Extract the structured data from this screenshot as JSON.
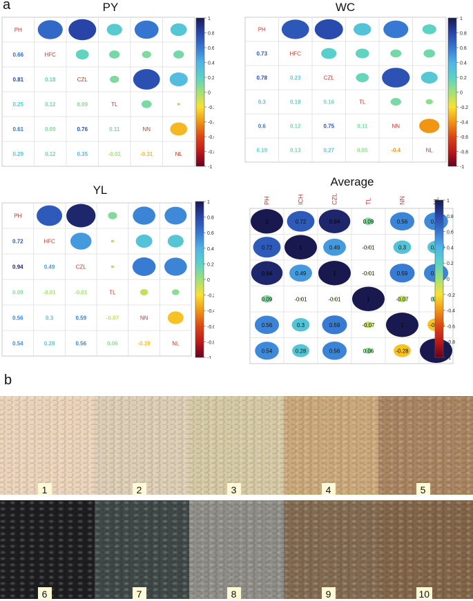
{
  "panels": {
    "a": "a",
    "b": "b"
  },
  "colorbar_ticks": [
    "1",
    "0.8",
    "0.6",
    "0.4",
    "0.2",
    "0",
    "-0.2",
    "-0.4",
    "-0.6",
    "-0.8",
    "-1"
  ],
  "chart_data": [
    {
      "type": "heatmap",
      "title": "PY",
      "labels": [
        "PH",
        "HFC",
        "CZL",
        "TL",
        "NN",
        "NL"
      ],
      "lower": [
        [
          1,
          0
        ],
        [
          2,
          0
        ],
        [
          2,
          1
        ],
        [
          3,
          0
        ],
        [
          3,
          1
        ],
        [
          3,
          2
        ],
        [
          4,
          0
        ],
        [
          4,
          1
        ],
        [
          4,
          2
        ],
        [
          4,
          3
        ],
        [
          5,
          0
        ],
        [
          5,
          1
        ],
        [
          5,
          2
        ],
        [
          5,
          3
        ],
        [
          5,
          4
        ]
      ],
      "lower_values": [
        0.66,
        0.81,
        0.18,
        0.25,
        0.12,
        0.09,
        0.61,
        0.09,
        0.76,
        0.11,
        0.29,
        0.12,
        0.35,
        -0.01,
        -0.31
      ],
      "lower_text": [
        "0.66",
        "0.81",
        "0.18",
        "0.25",
        "0.12",
        "0.09",
        "0.61",
        "0.09",
        "0.76",
        "0.11",
        "0.29",
        "0.12",
        "0.35",
        "-0.01",
        "-0.31"
      ],
      "show_upper_text": false,
      "column_labels": false,
      "colorbar_range": [
        -1,
        1
      ]
    },
    {
      "type": "heatmap",
      "title": "WC",
      "labels": [
        "PH",
        "HFC",
        "CZL",
        "TL",
        "NN",
        "NL"
      ],
      "lower": [
        [
          1,
          0
        ],
        [
          2,
          0
        ],
        [
          2,
          1
        ],
        [
          3,
          0
        ],
        [
          3,
          1
        ],
        [
          3,
          2
        ],
        [
          4,
          0
        ],
        [
          4,
          1
        ],
        [
          4,
          2
        ],
        [
          4,
          3
        ],
        [
          5,
          0
        ],
        [
          5,
          1
        ],
        [
          5,
          2
        ],
        [
          5,
          3
        ],
        [
          5,
          4
        ]
      ],
      "lower_values": [
        0.73,
        0.78,
        0.23,
        0.3,
        0.18,
        0.16,
        0.6,
        0.12,
        0.75,
        0.11,
        0.19,
        0.13,
        0.27,
        0.05,
        -0.4
      ],
      "lower_text": [
        "0.73",
        "0.78",
        "0.23",
        "0.3",
        "0.18",
        "0.16",
        "0.6",
        "0.12",
        "0.75",
        "0.11",
        "0.19",
        "0.13",
        "0.27",
        "0.05",
        "-0.4"
      ],
      "show_upper_text": false,
      "column_labels": false,
      "colorbar_range": [
        -1,
        1
      ]
    },
    {
      "type": "heatmap",
      "title": "YL",
      "labels": [
        "PH",
        "HFC",
        "CZL",
        "TL",
        "NN",
        "NL"
      ],
      "lower": [
        [
          1,
          0
        ],
        [
          2,
          0
        ],
        [
          2,
          1
        ],
        [
          3,
          0
        ],
        [
          3,
          1
        ],
        [
          3,
          2
        ],
        [
          4,
          0
        ],
        [
          4,
          1
        ],
        [
          4,
          2
        ],
        [
          4,
          3
        ],
        [
          5,
          0
        ],
        [
          5,
          1
        ],
        [
          5,
          2
        ],
        [
          5,
          3
        ],
        [
          5,
          4
        ]
      ],
      "lower_values": [
        0.72,
        0.94,
        0.49,
        0.09,
        -0.01,
        -0.01,
        0.56,
        0.3,
        0.59,
        -0.07,
        0.54,
        0.28,
        0.56,
        0.06,
        -0.28
      ],
      "lower_text": [
        "0.72",
        "0.94",
        "0.49",
        "0.09",
        "-0.01",
        "-0.01",
        "0.56",
        "0.3",
        "0.59",
        "-0.07",
        "0.54",
        "0.28",
        "0.56",
        "0.06",
        "-0.28"
      ],
      "show_upper_text": false,
      "column_labels": false,
      "colorbar_range": [
        -1,
        1
      ]
    },
    {
      "type": "heatmap",
      "title": "Average",
      "labels": [
        "PH",
        "ICH",
        "CZL",
        "TL",
        "NN",
        "NL"
      ],
      "lower": [
        [
          1,
          0
        ],
        [
          2,
          0
        ],
        [
          2,
          1
        ],
        [
          3,
          0
        ],
        [
          3,
          1
        ],
        [
          3,
          2
        ],
        [
          4,
          0
        ],
        [
          4,
          1
        ],
        [
          4,
          2
        ],
        [
          4,
          3
        ],
        [
          5,
          0
        ],
        [
          5,
          1
        ],
        [
          5,
          2
        ],
        [
          5,
          3
        ],
        [
          5,
          4
        ]
      ],
      "lower_values": [
        0.72,
        0.94,
        0.49,
        0.09,
        -0.01,
        -0.01,
        0.56,
        0.3,
        0.59,
        -0.07,
        0.54,
        0.28,
        0.56,
        0.06,
        -0.28
      ],
      "lower_text": [
        "0.72",
        "0.94",
        "0.49",
        "0.09",
        "-0.01",
        "-0.01",
        "0.56",
        "0.3",
        "0.59",
        "-0.07",
        "0.54",
        "0.28",
        "0.56",
        "0.06",
        "-0.28"
      ],
      "diag_text": "1",
      "show_upper_text": true,
      "column_labels": true,
      "colorbar_range": [
        -1,
        1
      ]
    }
  ],
  "photos": {
    "labels": [
      "1",
      "2",
      "3",
      "4",
      "5",
      "6",
      "7",
      "8",
      "9",
      "10"
    ],
    "colors": [
      "#ead3ba",
      "#ddcdb4",
      "#d5c9a4",
      "#caa87a",
      "#a98460",
      "#1d1d1f",
      "#3e4847",
      "#8e8d87",
      "#826a50",
      "#826548"
    ]
  }
}
